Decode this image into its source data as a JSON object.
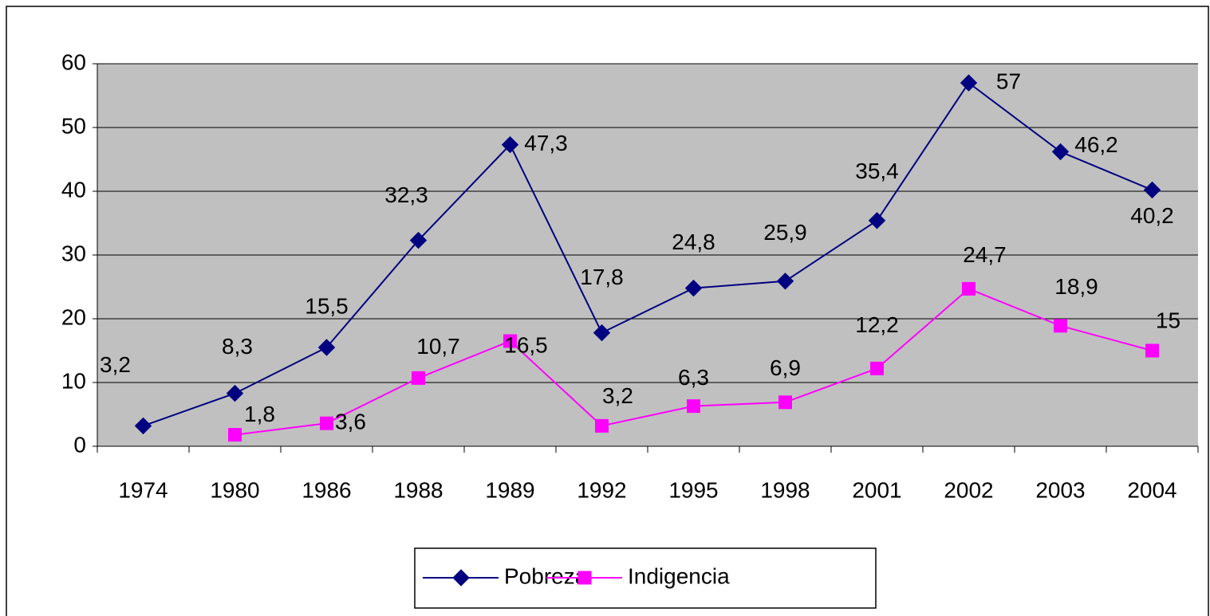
{
  "chart_data": {
    "type": "line",
    "categories": [
      "1974",
      "1980",
      "1986",
      "1988",
      "1989",
      "1992",
      "1995",
      "1998",
      "2001",
      "2002",
      "2003",
      "2004"
    ],
    "series": [
      {
        "name": "Pobreza",
        "color": "#000080",
        "marker": "diamond",
        "values": [
          3.2,
          8.3,
          15.5,
          32.3,
          47.3,
          17.8,
          24.8,
          25.9,
          35.4,
          57,
          46.2,
          40.2
        ],
        "value_labels": [
          "3,2",
          "8,3",
          "15,5",
          "32,3",
          "47,3",
          "17,8",
          "24,8",
          "25,9",
          "35,4",
          "57",
          "46,2",
          "40,2"
        ]
      },
      {
        "name": "Indigencia",
        "color": "#ff00ff",
        "marker": "square",
        "values": [
          null,
          1.8,
          3.6,
          10.7,
          16.5,
          3.2,
          6.3,
          6.9,
          12.2,
          24.7,
          18.9,
          15
        ],
        "value_labels": [
          null,
          "1,8",
          "3,6",
          "10,7",
          "16,5",
          "3,2",
          "6,3",
          "6,9",
          "12,2",
          "24,7",
          "18,9",
          "15"
        ]
      }
    ],
    "ylim": [
      0,
      60
    ],
    "yticks": [
      0,
      10,
      20,
      30,
      40,
      50,
      60
    ],
    "grid": true,
    "legend": "bottom"
  }
}
